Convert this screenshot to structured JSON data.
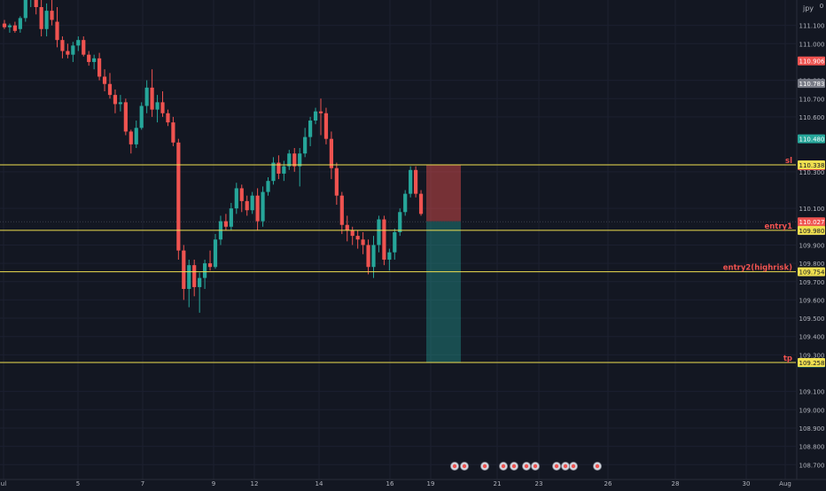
{
  "symbol_label": "jpy",
  "corner_mark": "0",
  "colors": {
    "background": "#131722",
    "grid": "#1c2030",
    "up": "#26a69a",
    "down": "#ef5350",
    "level_line": "#f0e050",
    "label_text": "#ef5350",
    "axis_text": "#b2b5be"
  },
  "chart_data": {
    "type": "candlestick",
    "ylim": [
      108.67,
      111.22
    ],
    "y_ticks": [
      "111.100",
      "111.000",
      "110.800",
      "110.700",
      "110.600",
      "110.300",
      "110.100",
      "109.900",
      "109.800",
      "109.700",
      "109.600",
      "109.500",
      "109.400",
      "109.300",
      "109.100",
      "109.000",
      "108.900",
      "108.800",
      "108.700"
    ],
    "x_ticks": [
      "ul",
      "5",
      "7",
      "9",
      "12",
      "14",
      "16",
      "19",
      "21",
      "23",
      "26",
      "28",
      "30",
      "Aug"
    ],
    "candles": [
      {
        "o": 111.11,
        "h": 111.13,
        "l": 111.08,
        "c": 111.09
      },
      {
        "o": 111.09,
        "h": 111.11,
        "l": 111.06,
        "c": 111.1
      },
      {
        "o": 111.1,
        "h": 111.12,
        "l": 111.06,
        "c": 111.07
      },
      {
        "o": 111.08,
        "h": 111.15,
        "l": 111.06,
        "c": 111.14
      },
      {
        "o": 111.14,
        "h": 111.3,
        "l": 111.12,
        "c": 111.25
      },
      {
        "o": 111.25,
        "h": 111.3,
        "l": 111.2,
        "c": 111.28
      },
      {
        "o": 111.28,
        "h": 111.3,
        "l": 111.16,
        "c": 111.2
      },
      {
        "o": 111.2,
        "h": 111.24,
        "l": 111.04,
        "c": 111.08
      },
      {
        "o": 111.08,
        "h": 111.22,
        "l": 111.04,
        "c": 111.18
      },
      {
        "o": 111.18,
        "h": 111.24,
        "l": 111.1,
        "c": 111.13
      },
      {
        "o": 111.12,
        "h": 111.2,
        "l": 110.98,
        "c": 111.02
      },
      {
        "o": 111.02,
        "h": 111.04,
        "l": 110.92,
        "c": 110.96
      },
      {
        "o": 110.96,
        "h": 111.0,
        "l": 110.92,
        "c": 110.94
      },
      {
        "o": 110.94,
        "h": 111.01,
        "l": 110.9,
        "c": 110.99
      },
      {
        "o": 110.99,
        "h": 111.04,
        "l": 110.96,
        "c": 111.02
      },
      {
        "o": 111.02,
        "h": 111.04,
        "l": 110.93,
        "c": 110.94
      },
      {
        "o": 110.94,
        "h": 110.96,
        "l": 110.88,
        "c": 110.9
      },
      {
        "o": 110.9,
        "h": 110.94,
        "l": 110.86,
        "c": 110.92
      },
      {
        "o": 110.92,
        "h": 110.95,
        "l": 110.8,
        "c": 110.82
      },
      {
        "o": 110.82,
        "h": 110.86,
        "l": 110.74,
        "c": 110.78
      },
      {
        "o": 110.78,
        "h": 110.84,
        "l": 110.7,
        "c": 110.72
      },
      {
        "o": 110.72,
        "h": 110.75,
        "l": 110.62,
        "c": 110.67
      },
      {
        "o": 110.67,
        "h": 110.72,
        "l": 110.63,
        "c": 110.68
      },
      {
        "o": 110.68,
        "h": 110.7,
        "l": 110.5,
        "c": 110.52
      },
      {
        "o": 110.52,
        "h": 110.53,
        "l": 110.4,
        "c": 110.45
      },
      {
        "o": 110.45,
        "h": 110.58,
        "l": 110.43,
        "c": 110.54
      },
      {
        "o": 110.54,
        "h": 110.68,
        "l": 110.53,
        "c": 110.66
      },
      {
        "o": 110.66,
        "h": 110.8,
        "l": 110.62,
        "c": 110.76
      },
      {
        "o": 110.76,
        "h": 110.86,
        "l": 110.6,
        "c": 110.64
      },
      {
        "o": 110.64,
        "h": 110.72,
        "l": 110.57,
        "c": 110.68
      },
      {
        "o": 110.68,
        "h": 110.74,
        "l": 110.6,
        "c": 110.62
      },
      {
        "o": 110.62,
        "h": 110.64,
        "l": 110.55,
        "c": 110.57
      },
      {
        "o": 110.57,
        "h": 110.6,
        "l": 110.44,
        "c": 110.46
      },
      {
        "o": 110.46,
        "h": 110.48,
        "l": 109.82,
        "c": 109.87
      },
      {
        "o": 109.87,
        "h": 109.9,
        "l": 109.6,
        "c": 109.66
      },
      {
        "o": 109.66,
        "h": 109.82,
        "l": 109.56,
        "c": 109.79
      },
      {
        "o": 109.79,
        "h": 109.82,
        "l": 109.62,
        "c": 109.67
      },
      {
        "o": 109.67,
        "h": 109.75,
        "l": 109.53,
        "c": 109.72
      },
      {
        "o": 109.72,
        "h": 109.82,
        "l": 109.66,
        "c": 109.8
      },
      {
        "o": 109.8,
        "h": 109.87,
        "l": 109.76,
        "c": 109.78
      },
      {
        "o": 109.78,
        "h": 109.96,
        "l": 109.77,
        "c": 109.93
      },
      {
        "o": 109.93,
        "h": 110.06,
        "l": 109.9,
        "c": 110.03
      },
      {
        "o": 110.03,
        "h": 110.07,
        "l": 109.98,
        "c": 110.0
      },
      {
        "o": 110.0,
        "h": 110.13,
        "l": 109.98,
        "c": 110.1
      },
      {
        "o": 110.1,
        "h": 110.24,
        "l": 110.07,
        "c": 110.21
      },
      {
        "o": 110.21,
        "h": 110.23,
        "l": 110.08,
        "c": 110.14
      },
      {
        "o": 110.14,
        "h": 110.17,
        "l": 110.06,
        "c": 110.09
      },
      {
        "o": 110.09,
        "h": 110.19,
        "l": 110.07,
        "c": 110.17
      },
      {
        "o": 110.17,
        "h": 110.21,
        "l": 109.98,
        "c": 110.03
      },
      {
        "o": 110.03,
        "h": 110.22,
        "l": 110.0,
        "c": 110.19
      },
      {
        "o": 110.19,
        "h": 110.27,
        "l": 110.17,
        "c": 110.25
      },
      {
        "o": 110.25,
        "h": 110.38,
        "l": 110.23,
        "c": 110.35
      },
      {
        "o": 110.35,
        "h": 110.39,
        "l": 110.26,
        "c": 110.29
      },
      {
        "o": 110.29,
        "h": 110.36,
        "l": 110.25,
        "c": 110.33
      },
      {
        "o": 110.33,
        "h": 110.42,
        "l": 110.31,
        "c": 110.4
      },
      {
        "o": 110.4,
        "h": 110.43,
        "l": 110.3,
        "c": 110.33
      },
      {
        "o": 110.33,
        "h": 110.43,
        "l": 110.22,
        "c": 110.4
      },
      {
        "o": 110.4,
        "h": 110.54,
        "l": 110.38,
        "c": 110.49
      },
      {
        "o": 110.49,
        "h": 110.6,
        "l": 110.44,
        "c": 110.58
      },
      {
        "o": 110.58,
        "h": 110.65,
        "l": 110.56,
        "c": 110.63
      },
      {
        "o": 110.63,
        "h": 110.7,
        "l": 110.5,
        "c": 110.62
      },
      {
        "o": 110.62,
        "h": 110.65,
        "l": 110.45,
        "c": 110.48
      },
      {
        "o": 110.48,
        "h": 110.52,
        "l": 110.26,
        "c": 110.32
      },
      {
        "o": 110.32,
        "h": 110.35,
        "l": 110.12,
        "c": 110.17
      },
      {
        "o": 110.17,
        "h": 110.19,
        "l": 109.96,
        "c": 110.01
      },
      {
        "o": 110.01,
        "h": 110.06,
        "l": 109.92,
        "c": 109.98
      },
      {
        "o": 109.98,
        "h": 110.0,
        "l": 109.9,
        "c": 109.95
      },
      {
        "o": 109.95,
        "h": 109.98,
        "l": 109.88,
        "c": 109.93
      },
      {
        "o": 109.93,
        "h": 109.97,
        "l": 109.85,
        "c": 109.9
      },
      {
        "o": 109.9,
        "h": 109.93,
        "l": 109.74,
        "c": 109.78
      },
      {
        "o": 109.78,
        "h": 109.95,
        "l": 109.72,
        "c": 109.9
      },
      {
        "o": 109.9,
        "h": 110.06,
        "l": 109.86,
        "c": 110.04
      },
      {
        "o": 110.04,
        "h": 110.06,
        "l": 109.79,
        "c": 109.82
      },
      {
        "o": 109.82,
        "h": 109.88,
        "l": 109.76,
        "c": 109.86
      },
      {
        "o": 109.86,
        "h": 109.99,
        "l": 109.82,
        "c": 109.97
      },
      {
        "o": 109.97,
        "h": 110.1,
        "l": 109.95,
        "c": 110.08
      },
      {
        "o": 110.08,
        "h": 110.2,
        "l": 110.06,
        "c": 110.18
      },
      {
        "o": 110.18,
        "h": 110.33,
        "l": 110.16,
        "c": 110.31
      },
      {
        "o": 110.31,
        "h": 110.33,
        "l": 110.16,
        "c": 110.18
      },
      {
        "o": 110.18,
        "h": 110.2,
        "l": 110.06,
        "c": 110.07
      }
    ],
    "levels": [
      {
        "name": "sl",
        "price": 110.338,
        "label": "sl",
        "tag": "110.338"
      },
      {
        "name": "entry1",
        "price": 109.98,
        "label": "entry1",
        "tag": "109.980"
      },
      {
        "name": "entry2",
        "price": 109.754,
        "label": "entry2(highrisk)",
        "tag": "109.754"
      },
      {
        "name": "tp",
        "price": 109.258,
        "label": "tp",
        "tag": "109.258"
      }
    ],
    "price_tags": [
      {
        "price": 110.906,
        "text": "110.906",
        "bg": "#ef5350",
        "fg": "#ffffff"
      },
      {
        "price": 110.783,
        "text": "110.783",
        "bg": "#787b86",
        "fg": "#ffffff"
      },
      {
        "price": 110.48,
        "text": "110.480",
        "bg": "#26a69a",
        "fg": "#ffffff"
      },
      {
        "price": 110.334,
        "text": "110.334",
        "bg": "#ef5350",
        "fg": "#ffffff"
      },
      {
        "price": 110.027,
        "text": "110.027",
        "bg": "#ef5350",
        "fg": "#ffffff"
      },
      {
        "price": 109.979,
        "text": "109.979",
        "bg": "#787b86",
        "fg": "#ffffff"
      },
      {
        "price": 109.256,
        "text": "109.256",
        "bg": "#26a69a",
        "fg": "#ffffff"
      }
    ],
    "position": {
      "entry": 110.03,
      "stop": 110.338,
      "target": 109.258,
      "start_index": 80,
      "end_index": 86
    },
    "grid": true
  }
}
